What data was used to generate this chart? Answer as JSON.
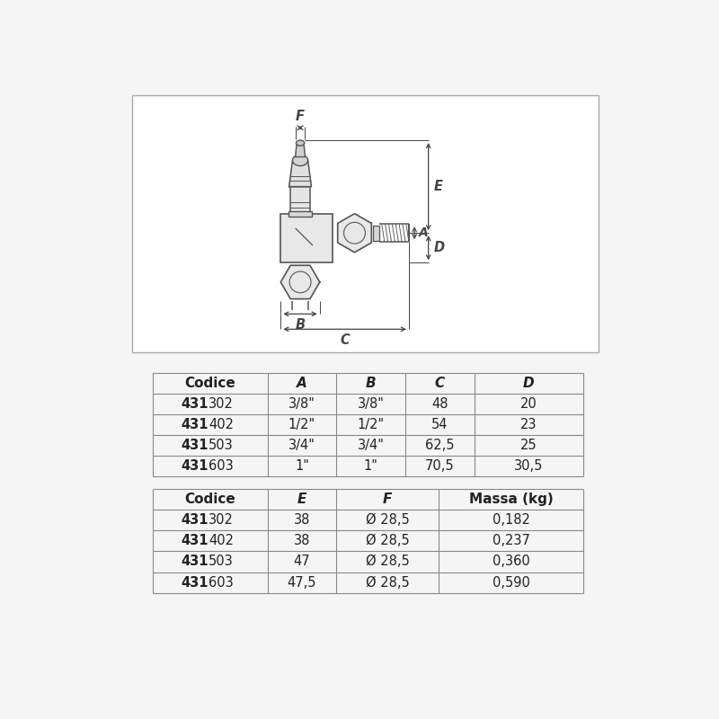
{
  "bg_color": "#f5f5f5",
  "table_bg": "#ffffff",
  "border_color": "#999999",
  "table1_headers": [
    "Codice",
    "A",
    "B",
    "C",
    "D"
  ],
  "table1_rows": [
    [
      "431",
      "302",
      "3/8\"",
      "3/8\"",
      "48",
      "20"
    ],
    [
      "431",
      "402",
      "1/2\"",
      "1/2\"",
      "54",
      "23"
    ],
    [
      "431",
      "503",
      "3/4\"",
      "3/4\"",
      "62,5",
      "25"
    ],
    [
      "431",
      "603",
      "1\"",
      "1\"",
      "70,5",
      "30,5"
    ]
  ],
  "table2_headers": [
    "Codice",
    "E",
    "F",
    "Massa (kg)"
  ],
  "table2_rows": [
    [
      "431",
      "302",
      "38",
      "Ø 28,5",
      "0,182"
    ],
    [
      "431",
      "402",
      "38",
      "Ø 28,5",
      "0,237"
    ],
    [
      "431",
      "503",
      "47",
      "Ø 28,5",
      "0,360"
    ],
    [
      "431",
      "603",
      "47,5",
      "Ø 28,5",
      "0,590"
    ]
  ],
  "line_color": "#555555",
  "dim_color": "#444444",
  "text_color": "#222222",
  "font_size_table": 10.5,
  "font_size_header": 11,
  "font_size_dim": 10.5
}
